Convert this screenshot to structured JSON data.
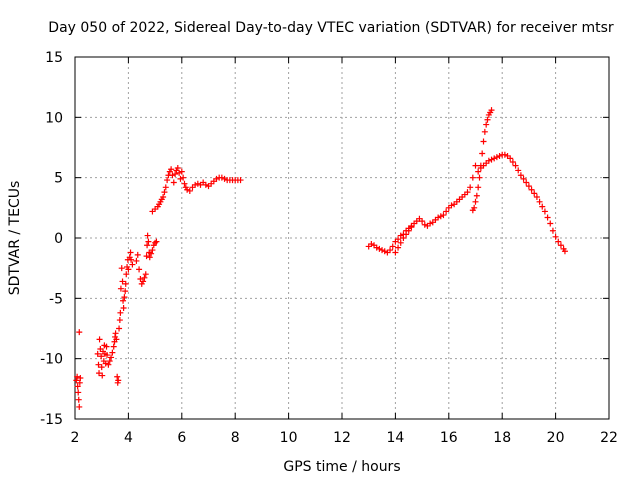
{
  "chart_data": {
    "type": "scatter",
    "title": "Day 050 of 2022, Sidereal Day-to-day VTEC variation (SDTVAR) for receiver mtsr",
    "xlabel": "GPS time / hours",
    "ylabel": "SDTVAR / TECUs",
    "xlim": [
      2,
      22
    ],
    "ylim": [
      -15,
      15
    ],
    "xticks": [
      2,
      4,
      6,
      8,
      10,
      12,
      14,
      16,
      18,
      20,
      22
    ],
    "yticks": [
      -15,
      -10,
      -5,
      0,
      5,
      10,
      15
    ],
    "grid": true,
    "marker": "+",
    "marker_color": "#ff0000",
    "series": [
      {
        "name": "mtsr",
        "points": [
          [
            2.05,
            -11.8
          ],
          [
            2.08,
            -11.5
          ],
          [
            2.1,
            -12.3
          ],
          [
            2.12,
            -12.8
          ],
          [
            2.14,
            -13.4
          ],
          [
            2.16,
            -14.0
          ],
          [
            2.18,
            -12.0
          ],
          [
            2.2,
            -11.6
          ],
          [
            2.16,
            -7.8
          ],
          [
            2.85,
            -9.6
          ],
          [
            2.88,
            -10.5
          ],
          [
            2.9,
            -11.2
          ],
          [
            2.92,
            -8.4
          ],
          [
            2.95,
            -9.2
          ],
          [
            2.98,
            -9.8
          ],
          [
            3.0,
            -10.7
          ],
          [
            3.02,
            -11.4
          ],
          [
            3.05,
            -9.4
          ],
          [
            3.08,
            -10.2
          ],
          [
            3.1,
            -8.9
          ],
          [
            3.12,
            -9.6
          ],
          [
            3.15,
            -10.4
          ],
          [
            3.18,
            -9.0
          ],
          [
            3.2,
            -9.7
          ],
          [
            3.25,
            -10.5
          ],
          [
            3.3,
            -10.2
          ],
          [
            3.35,
            -9.9
          ],
          [
            3.4,
            -9.5
          ],
          [
            3.45,
            -9.0
          ],
          [
            3.48,
            -8.6
          ],
          [
            3.5,
            -8.2
          ],
          [
            3.52,
            -7.9
          ],
          [
            3.55,
            -8.4
          ],
          [
            3.58,
            -11.5
          ],
          [
            3.6,
            -12.0
          ],
          [
            3.62,
            -11.8
          ],
          [
            3.65,
            -7.5
          ],
          [
            3.68,
            -6.8
          ],
          [
            3.7,
            -6.2
          ],
          [
            3.72,
            -4.2
          ],
          [
            3.75,
            -2.5
          ],
          [
            3.78,
            -3.6
          ],
          [
            3.8,
            -5.2
          ],
          [
            3.82,
            -5.8
          ],
          [
            3.85,
            -4.9
          ],
          [
            3.88,
            -4.4
          ],
          [
            3.9,
            -3.8
          ],
          [
            3.92,
            -3.0
          ],
          [
            3.95,
            -2.4
          ],
          [
            3.98,
            -1.8
          ],
          [
            4.0,
            -2.6
          ],
          [
            4.05,
            -1.6
          ],
          [
            4.08,
            -1.2
          ],
          [
            4.1,
            -1.8
          ],
          [
            4.15,
            -2.2
          ],
          [
            4.3,
            -1.9
          ],
          [
            4.35,
            -1.4
          ],
          [
            4.4,
            -2.6
          ],
          [
            4.45,
            -3.4
          ],
          [
            4.5,
            -3.8
          ],
          [
            4.55,
            -3.6
          ],
          [
            4.6,
            -3.3
          ],
          [
            4.65,
            -3.0
          ],
          [
            4.68,
            -1.5
          ],
          [
            4.7,
            -0.6
          ],
          [
            4.72,
            0.2
          ],
          [
            4.75,
            -0.3
          ],
          [
            4.78,
            -1.2
          ],
          [
            4.8,
            -1.6
          ],
          [
            4.85,
            -1.3
          ],
          [
            4.9,
            -1.0
          ],
          [
            4.95,
            -0.6
          ],
          [
            5.0,
            -0.4
          ],
          [
            5.05,
            -0.3
          ],
          [
            4.9,
            2.2
          ],
          [
            5.0,
            2.4
          ],
          [
            5.1,
            2.6
          ],
          [
            5.15,
            2.8
          ],
          [
            5.2,
            3.0
          ],
          [
            5.25,
            3.2
          ],
          [
            5.3,
            3.4
          ],
          [
            5.35,
            3.8
          ],
          [
            5.4,
            4.2
          ],
          [
            5.45,
            4.8
          ],
          [
            5.5,
            5.2
          ],
          [
            5.55,
            5.5
          ],
          [
            5.6,
            5.7
          ],
          [
            5.65,
            5.2
          ],
          [
            5.7,
            4.6
          ],
          [
            5.75,
            5.3
          ],
          [
            5.8,
            5.6
          ],
          [
            5.85,
            5.8
          ],
          [
            5.9,
            5.4
          ],
          [
            5.95,
            4.9
          ],
          [
            6.0,
            5.5
          ],
          [
            6.05,
            5.0
          ],
          [
            6.1,
            4.5
          ],
          [
            6.15,
            4.2
          ],
          [
            6.2,
            4.0
          ],
          [
            6.3,
            3.9
          ],
          [
            6.4,
            4.2
          ],
          [
            6.5,
            4.4
          ],
          [
            6.6,
            4.5
          ],
          [
            6.7,
            4.4
          ],
          [
            6.8,
            4.6
          ],
          [
            6.9,
            4.4
          ],
          [
            7.0,
            4.3
          ],
          [
            7.1,
            4.5
          ],
          [
            7.2,
            4.7
          ],
          [
            7.3,
            4.9
          ],
          [
            7.4,
            5.0
          ],
          [
            7.5,
            5.0
          ],
          [
            7.6,
            4.9
          ],
          [
            7.7,
            4.8
          ],
          [
            7.8,
            4.8
          ],
          [
            7.9,
            4.8
          ],
          [
            8.0,
            4.8
          ],
          [
            8.1,
            4.8
          ],
          [
            8.2,
            4.8
          ],
          [
            13.0,
            -0.7
          ],
          [
            13.1,
            -0.5
          ],
          [
            13.2,
            -0.6
          ],
          [
            13.3,
            -0.8
          ],
          [
            13.4,
            -0.9
          ],
          [
            13.5,
            -1.0
          ],
          [
            13.6,
            -1.1
          ],
          [
            13.7,
            -1.2
          ],
          [
            13.8,
            -1.0
          ],
          [
            13.9,
            -0.7
          ],
          [
            14.0,
            -0.3
          ],
          [
            14.1,
            -0.1
          ],
          [
            14.2,
            0.2
          ],
          [
            14.3,
            0.3
          ],
          [
            14.4,
            0.6
          ],
          [
            14.5,
            0.8
          ],
          [
            14.6,
            1.0
          ],
          [
            14.7,
            1.2
          ],
          [
            14.8,
            1.4
          ],
          [
            14.9,
            1.6
          ],
          [
            15.0,
            1.4
          ],
          [
            15.1,
            1.1
          ],
          [
            15.2,
            1.0
          ],
          [
            15.3,
            1.2
          ],
          [
            15.4,
            1.3
          ],
          [
            15.5,
            1.5
          ],
          [
            15.6,
            1.7
          ],
          [
            15.7,
            1.8
          ],
          [
            15.8,
            1.9
          ],
          [
            15.9,
            2.2
          ],
          [
            16.0,
            2.5
          ],
          [
            16.1,
            2.7
          ],
          [
            16.2,
            2.8
          ],
          [
            16.3,
            3.0
          ],
          [
            16.4,
            3.2
          ],
          [
            16.5,
            3.4
          ],
          [
            16.6,
            3.6
          ],
          [
            16.7,
            3.8
          ],
          [
            16.8,
            4.2
          ],
          [
            16.9,
            5.0
          ],
          [
            17.0,
            6.0
          ],
          [
            14.0,
            -1.2
          ],
          [
            14.1,
            -0.8
          ],
          [
            14.2,
            -0.4
          ],
          [
            14.3,
            0.0
          ],
          [
            14.4,
            0.3
          ],
          [
            14.5,
            0.6
          ],
          [
            14.6,
            0.9
          ],
          [
            16.9,
            2.3
          ],
          [
            16.95,
            2.5
          ],
          [
            17.0,
            3.0
          ],
          [
            17.05,
            3.5
          ],
          [
            17.1,
            4.2
          ],
          [
            17.15,
            5.0
          ],
          [
            17.2,
            6.0
          ],
          [
            17.25,
            7.0
          ],
          [
            17.3,
            8.0
          ],
          [
            17.35,
            8.8
          ],
          [
            17.4,
            9.4
          ],
          [
            17.45,
            9.8
          ],
          [
            17.5,
            10.2
          ],
          [
            17.55,
            10.4
          ],
          [
            17.6,
            10.6
          ],
          [
            17.1,
            5.5
          ],
          [
            17.2,
            5.8
          ],
          [
            17.3,
            6.0
          ],
          [
            17.4,
            6.2
          ],
          [
            17.5,
            6.4
          ],
          [
            17.6,
            6.5
          ],
          [
            17.7,
            6.6
          ],
          [
            17.8,
            6.7
          ],
          [
            17.9,
            6.8
          ],
          [
            18.0,
            6.9
          ],
          [
            18.1,
            6.9
          ],
          [
            18.2,
            6.8
          ],
          [
            18.3,
            6.6
          ],
          [
            18.4,
            6.3
          ],
          [
            18.5,
            6.0
          ],
          [
            18.6,
            5.6
          ],
          [
            18.7,
            5.2
          ],
          [
            18.8,
            4.9
          ],
          [
            18.9,
            4.6
          ],
          [
            19.0,
            4.3
          ],
          [
            19.1,
            4.0
          ],
          [
            19.2,
            3.7
          ],
          [
            19.3,
            3.4
          ],
          [
            19.4,
            3.0
          ],
          [
            19.5,
            2.6
          ],
          [
            19.6,
            2.2
          ],
          [
            19.7,
            1.7
          ],
          [
            19.8,
            1.2
          ],
          [
            19.9,
            0.6
          ],
          [
            20.0,
            0.1
          ],
          [
            20.1,
            -0.3
          ],
          [
            20.2,
            -0.6
          ],
          [
            20.3,
            -0.9
          ],
          [
            20.35,
            -1.1
          ]
        ]
      }
    ]
  }
}
